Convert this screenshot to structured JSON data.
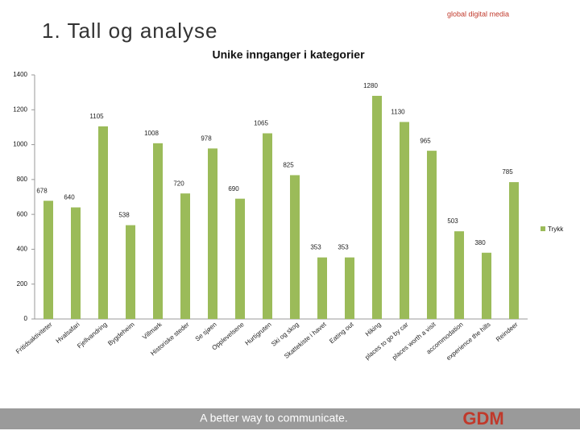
{
  "brand": "global digital media",
  "slide_title": "1. Tall og analyse",
  "footer": "A better way to communicate.",
  "logo": "GDM",
  "chart_data": {
    "type": "bar",
    "title": "Unike innganger i kategorier",
    "categories": [
      "Fritidsaktiviteter",
      "Hvalsafari",
      "Fjellvandring",
      "Bygdeheim",
      "Villmark",
      "Historiske steder",
      "Se sjøen",
      "Opplevelsene",
      "Hurtigruten",
      "Ski og skog",
      "Skattekiste i havet",
      "Eating out",
      "Hiking",
      "places to go by car",
      "places worth a visit",
      "accommodation",
      "experience the hills",
      "Reindeer"
    ],
    "series": [
      {
        "name": "Trykk",
        "color": "#9bbb59",
        "values": [
          678,
          640,
          1105,
          538,
          1008,
          720,
          978,
          690,
          1065,
          825,
          353,
          353,
          1280,
          1130,
          965,
          503,
          380,
          785
        ]
      }
    ],
    "ylim": [
      0,
      1400
    ],
    "yticks": [
      0,
      200,
      400,
      600,
      800,
      1000,
      1200,
      1400
    ],
    "grid": false,
    "legend": "right"
  }
}
